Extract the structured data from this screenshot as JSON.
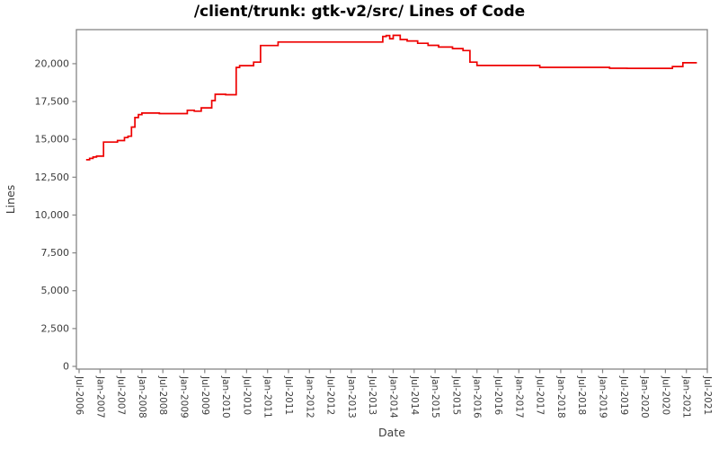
{
  "title": "/client/trunk: gtk-v2/src/ Lines of Code",
  "chart_data": {
    "type": "line",
    "style": "step-after",
    "title": "/client/trunk: gtk-v2/src/ Lines of Code",
    "xlabel": "Date",
    "ylabel": "Lines",
    "legend": "none",
    "grid": false,
    "line_color": "#ee0000",
    "border_color": "#858585",
    "text_color": "#3c3c3c",
    "ylim": [
      0,
      22250
    ],
    "x_tick_labels": [
      "Jul-2006",
      "Jan-2007",
      "Jul-2007",
      "Jan-2008",
      "Jul-2008",
      "Jan-2009",
      "Jul-2009",
      "Jan-2010",
      "Jul-2010",
      "Jan-2011",
      "Jul-2011",
      "Jan-2012",
      "Jul-2012",
      "Jan-2013",
      "Jul-2013",
      "Jan-2014",
      "Jul-2014",
      "Jan-2015",
      "Jul-2015",
      "Jan-2016",
      "Jul-2016",
      "Jan-2017",
      "Jul-2017",
      "Jan-2018",
      "Jul-2018",
      "Jan-2019",
      "Jul-2019",
      "Jan-2020",
      "Jul-2020",
      "Jan-2021",
      "Jul-2021"
    ],
    "x_tick_interval_months": 6,
    "y_ticks": [
      {
        "value": 0,
        "label": "0"
      },
      {
        "value": 2500,
        "label": "2,500"
      },
      {
        "value": 5000,
        "label": "5,000"
      },
      {
        "value": 7500,
        "label": "7,500"
      },
      {
        "value": 10000,
        "label": "10,000"
      },
      {
        "value": 12500,
        "label": "12,500"
      },
      {
        "value": 15000,
        "label": "15,000"
      },
      {
        "value": 17500,
        "label": "17,500"
      },
      {
        "value": 20000,
        "label": "20,000"
      }
    ],
    "points": [
      {
        "date": "2006-09",
        "lines": 13650
      },
      {
        "date": "2006-10",
        "lines": 13740
      },
      {
        "date": "2006-11",
        "lines": 13830
      },
      {
        "date": "2006-12",
        "lines": 13890
      },
      {
        "date": "2007-02",
        "lines": 14820
      },
      {
        "date": "2007-06",
        "lines": 14920
      },
      {
        "date": "2007-08",
        "lines": 15120
      },
      {
        "date": "2007-09",
        "lines": 15210
      },
      {
        "date": "2007-10",
        "lines": 15810
      },
      {
        "date": "2007-11",
        "lines": 16440
      },
      {
        "date": "2007-12",
        "lines": 16640
      },
      {
        "date": "2008-01",
        "lines": 16740
      },
      {
        "date": "2008-06",
        "lines": 16700
      },
      {
        "date": "2009-02",
        "lines": 16920
      },
      {
        "date": "2009-04",
        "lines": 16860
      },
      {
        "date": "2009-06",
        "lines": 17080
      },
      {
        "date": "2009-09",
        "lines": 17560
      },
      {
        "date": "2009-10",
        "lines": 17980
      },
      {
        "date": "2010-01",
        "lines": 17950
      },
      {
        "date": "2010-04",
        "lines": 19750
      },
      {
        "date": "2010-05",
        "lines": 19870
      },
      {
        "date": "2010-09",
        "lines": 20100
      },
      {
        "date": "2010-11",
        "lines": 21200
      },
      {
        "date": "2011-04",
        "lines": 21430
      },
      {
        "date": "2013-10",
        "lines": 21800
      },
      {
        "date": "2013-11",
        "lines": 21860
      },
      {
        "date": "2013-12",
        "lines": 21650
      },
      {
        "date": "2014-01",
        "lines": 21870
      },
      {
        "date": "2014-03",
        "lines": 21600
      },
      {
        "date": "2014-05",
        "lines": 21500
      },
      {
        "date": "2014-08",
        "lines": 21350
      },
      {
        "date": "2014-11",
        "lines": 21210
      },
      {
        "date": "2015-02",
        "lines": 21100
      },
      {
        "date": "2015-06",
        "lines": 21000
      },
      {
        "date": "2015-09",
        "lines": 20870
      },
      {
        "date": "2015-11",
        "lines": 20100
      },
      {
        "date": "2016-01",
        "lines": 19880
      },
      {
        "date": "2017-07",
        "lines": 19760
      },
      {
        "date": "2019-03",
        "lines": 19700
      },
      {
        "date": "2019-08",
        "lines": 19690
      },
      {
        "date": "2020-09",
        "lines": 19810
      },
      {
        "date": "2020-12",
        "lines": 20060
      },
      {
        "date": "2021-04",
        "lines": 20060
      }
    ]
  }
}
